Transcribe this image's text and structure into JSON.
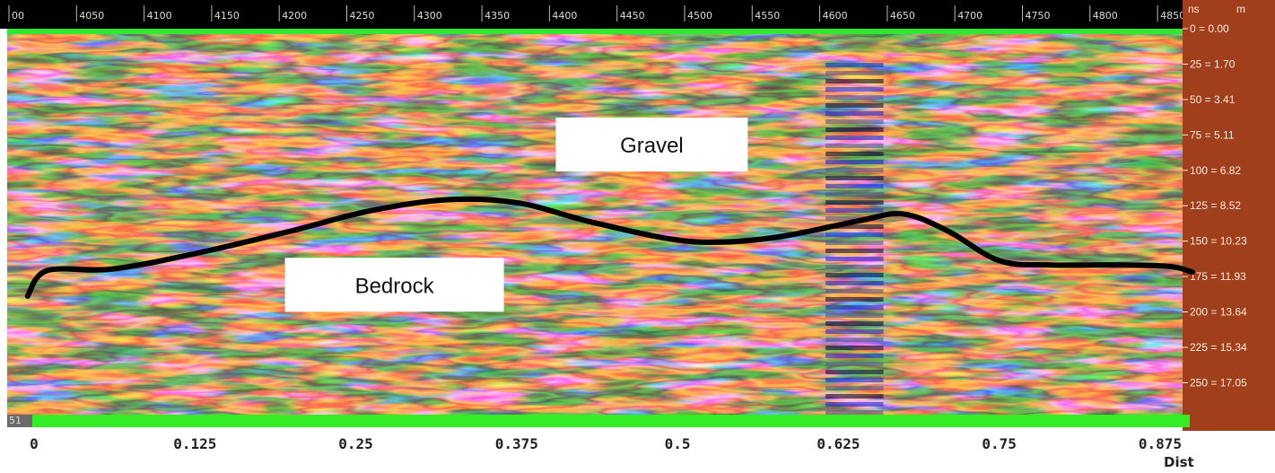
{
  "chart_data": {
    "type": "heatmap",
    "title": "",
    "top_axis": {
      "ticks": [
        "00",
        "4050",
        "4100",
        "4150",
        "4200",
        "4250",
        "4300",
        "4350",
        "4400",
        "4450",
        "4500",
        "4550",
        "4600",
        "4650",
        "4700",
        "4750",
        "4800",
        "4850"
      ]
    },
    "right_axis": {
      "unit_ns": "ns",
      "unit_m": "m",
      "ticks": [
        {
          "ns": 0,
          "label": "0 = 0.00"
        },
        {
          "ns": 25,
          "label": "25 = 1.70"
        },
        {
          "ns": 50,
          "label": "50 = 3.41"
        },
        {
          "ns": 75,
          "label": "75 = 5.11"
        },
        {
          "ns": 100,
          "label": "100 = 6.82"
        },
        {
          "ns": 125,
          "label": "125 = 8.52"
        },
        {
          "ns": 150,
          "label": "150 = 10.23"
        },
        {
          "ns": 175,
          "label": "175 = 11.93"
        },
        {
          "ns": 200,
          "label": "200 = 13.64"
        },
        {
          "ns": 225,
          "label": "225 = 15.34"
        },
        {
          "ns": 250,
          "label": "250 = 17.05"
        }
      ],
      "range_ns": [
        0,
        270
      ]
    },
    "bottom_axis": {
      "label": "Dist",
      "range": [
        0,
        0.9
      ],
      "ticks": [
        {
          "value": 0,
          "label": "0"
        },
        {
          "value": 0.125,
          "label": "0.125"
        },
        {
          "value": 0.25,
          "label": "0.25"
        },
        {
          "value": 0.375,
          "label": "0.375"
        },
        {
          "value": 0.5,
          "label": "0.5"
        },
        {
          "value": 0.625,
          "label": "0.625"
        },
        {
          "value": 0.75,
          "label": "0.75"
        },
        {
          "value": 0.875,
          "label": "0.875"
        }
      ]
    },
    "interface_line": {
      "description": "Gravel/bedrock boundary",
      "points": [
        {
          "dist": -0.005,
          "ns": 185
        },
        {
          "dist": 0.01,
          "ns": 167
        },
        {
          "dist": 0.06,
          "ns": 166
        },
        {
          "dist": 0.125,
          "ns": 155
        },
        {
          "dist": 0.2,
          "ns": 139
        },
        {
          "dist": 0.26,
          "ns": 125
        },
        {
          "dist": 0.32,
          "ns": 117
        },
        {
          "dist": 0.375,
          "ns": 119
        },
        {
          "dist": 0.43,
          "ns": 132
        },
        {
          "dist": 0.49,
          "ns": 144
        },
        {
          "dist": 0.53,
          "ns": 147
        },
        {
          "dist": 0.58,
          "ns": 143
        },
        {
          "dist": 0.64,
          "ns": 132
        },
        {
          "dist": 0.675,
          "ns": 127
        },
        {
          "dist": 0.71,
          "ns": 139
        },
        {
          "dist": 0.75,
          "ns": 160
        },
        {
          "dist": 0.79,
          "ns": 163
        },
        {
          "dist": 0.84,
          "ns": 163
        },
        {
          "dist": 0.882,
          "ns": 164
        },
        {
          "dist": 0.9,
          "ns": 168
        }
      ]
    },
    "annotations": [
      {
        "text": "Gravel",
        "dist": 0.48,
        "ns": 78
      },
      {
        "text": "Bedrock",
        "dist": 0.28,
        "ns": 177
      }
    ],
    "colormap": [
      "#05053a",
      "#0b1aa8",
      "#1f3de6",
      "#2e8b2e",
      "#e8201a",
      "#ff7a10",
      "#ffd020",
      "#fff8b0"
    ],
    "grid": false
  }
}
